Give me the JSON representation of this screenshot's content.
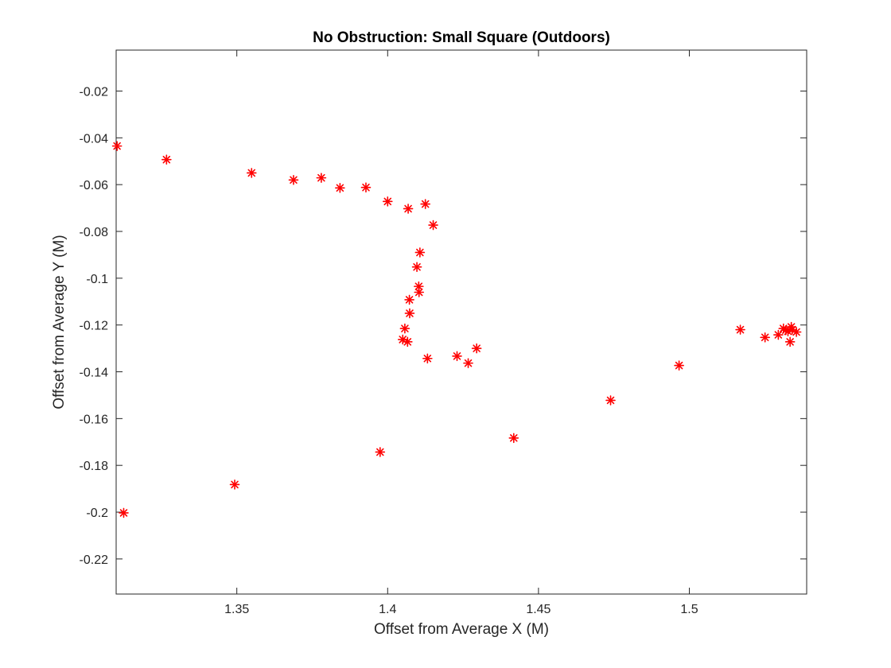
{
  "chart_data": {
    "type": "scatter",
    "title": "No Obstruction: Small Square (Outdoors)",
    "xlabel": "Offset from Average X (M)",
    "ylabel": "Offset from Average Y (M)",
    "xlim": [
      1.31,
      1.5389
    ],
    "ylim": [
      -0.235,
      -0.0025
    ],
    "xticks": [
      1.35,
      1.4,
      1.45,
      1.5
    ],
    "xtick_labels": [
      "1.35",
      "1.4",
      "1.45",
      "1.5"
    ],
    "yticks": [
      -0.02,
      -0.04,
      -0.06,
      -0.08,
      -0.1,
      -0.12,
      -0.14,
      -0.16,
      -0.18,
      -0.2,
      -0.22
    ],
    "ytick_labels": [
      "-0.02",
      "-0.04",
      "-0.06",
      "-0.08",
      "-0.1",
      "-0.12",
      "-0.14",
      "-0.16",
      "-0.18",
      "-0.2",
      "-0.22"
    ],
    "grid": false,
    "marker": "*",
    "marker_color": "#ff0000",
    "series": [
      {
        "x": [
          1.3103,
          1.3267,
          1.3549,
          1.3688,
          1.378,
          1.3842,
          1.3928,
          1.4,
          1.4068,
          1.4125,
          1.4151,
          1.4107,
          1.4097,
          1.4103,
          1.4104,
          1.4072,
          1.4073,
          1.4057,
          1.405,
          1.4066,
          1.4132,
          1.423,
          1.4267,
          1.4295,
          1.4418,
          1.4739,
          1.4966,
          1.5169,
          1.5251,
          1.5295,
          1.5312,
          1.532,
          1.5327,
          1.5338,
          1.5334,
          1.5355,
          1.5341,
          1.3975,
          1.3493,
          1.3125
        ],
        "y": [
          -0.0435,
          -0.0493,
          -0.055,
          -0.058,
          -0.0571,
          -0.0614,
          -0.0612,
          -0.0672,
          -0.0703,
          -0.0683,
          -0.0773,
          -0.089,
          -0.0952,
          -0.1035,
          -0.106,
          -0.1092,
          -0.115,
          -0.1215,
          -0.1262,
          -0.1272,
          -0.1343,
          -0.1333,
          -0.1363,
          -0.13,
          -0.1683,
          -0.1522,
          -0.1373,
          -0.122,
          -0.1253,
          -0.1242,
          -0.1215,
          -0.1222,
          -0.1227,
          -0.1208,
          -0.1272,
          -0.123,
          -0.122,
          -0.1743,
          -0.1882,
          -0.2003
        ]
      }
    ]
  }
}
